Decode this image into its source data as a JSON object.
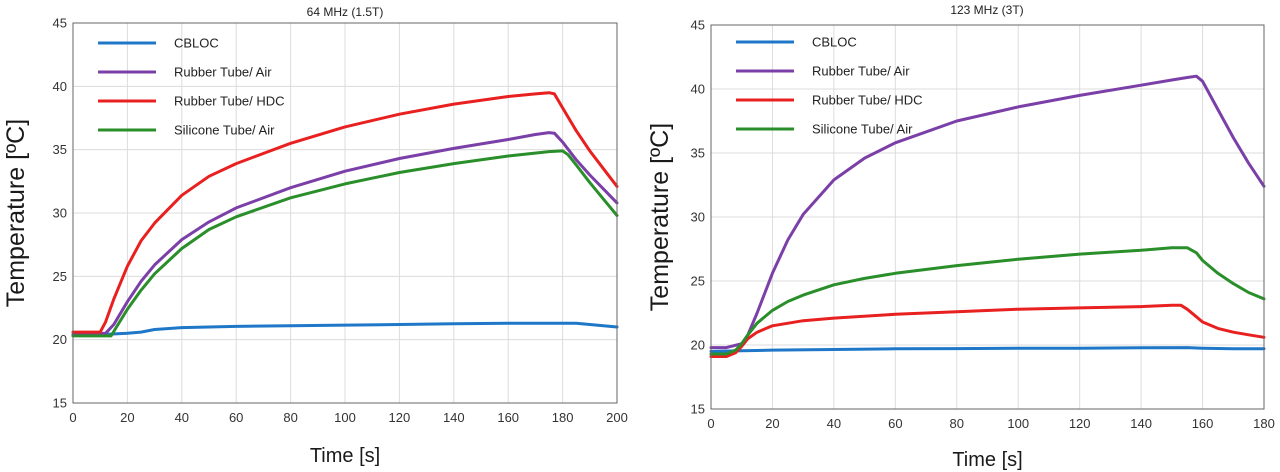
{
  "chart_data": [
    {
      "type": "line",
      "title": "64 MHz (1.5T)",
      "xlabel": "Time [s]",
      "ylabel": "Temperature [ºC]",
      "xlim": [
        0,
        200
      ],
      "ylim": [
        15,
        45
      ],
      "xticks": [
        0,
        20,
        40,
        60,
        80,
        100,
        120,
        140,
        160,
        180,
        200
      ],
      "yticks": [
        15,
        20,
        25,
        30,
        35,
        40,
        45
      ],
      "grid": true,
      "legend": "top-left",
      "series": [
        {
          "name": "CBLOC",
          "color": "#1f77c8",
          "x": [
            0,
            10,
            20,
            25,
            30,
            40,
            50,
            60,
            80,
            100,
            120,
            140,
            160,
            180,
            185,
            190,
            200
          ],
          "y": [
            20.4,
            20.4,
            20.5,
            20.6,
            20.8,
            20.95,
            21.0,
            21.05,
            21.1,
            21.15,
            21.2,
            21.25,
            21.3,
            21.3,
            21.3,
            21.2,
            21.0
          ]
        },
        {
          "name": "Rubber Tube/ Air",
          "color": "#7b3fa8",
          "x": [
            0,
            12,
            15,
            20,
            25,
            30,
            40,
            50,
            60,
            80,
            100,
            120,
            140,
            160,
            170,
            175,
            177,
            180,
            185,
            190,
            195,
            200
          ],
          "y": [
            20.4,
            20.5,
            21.2,
            23.0,
            24.6,
            25.9,
            27.9,
            29.3,
            30.4,
            32.0,
            33.3,
            34.3,
            35.1,
            35.8,
            36.2,
            36.35,
            36.3,
            35.6,
            34.2,
            33.0,
            31.9,
            30.8
          ]
        },
        {
          "name": "Rubber Tube/ HDC",
          "color": "#e8201f",
          "x": [
            0,
            10,
            12,
            15,
            20,
            25,
            30,
            40,
            50,
            60,
            80,
            100,
            120,
            140,
            160,
            170,
            175,
            177,
            180,
            185,
            190,
            195,
            200
          ],
          "y": [
            20.6,
            20.6,
            21.4,
            23.2,
            25.8,
            27.8,
            29.2,
            31.4,
            32.9,
            33.9,
            35.5,
            36.8,
            37.8,
            38.6,
            39.2,
            39.4,
            39.5,
            39.4,
            38.3,
            36.5,
            34.9,
            33.5,
            32.1
          ]
        },
        {
          "name": "Silicone Tube/ Air",
          "color": "#2a8f2a",
          "x": [
            0,
            14,
            16,
            20,
            25,
            30,
            40,
            50,
            60,
            80,
            100,
            120,
            140,
            160,
            175,
            180,
            182,
            185,
            190,
            195,
            200
          ],
          "y": [
            20.3,
            20.3,
            21.0,
            22.4,
            23.9,
            25.2,
            27.2,
            28.7,
            29.7,
            31.2,
            32.3,
            33.2,
            33.9,
            34.5,
            34.85,
            34.9,
            34.6,
            33.8,
            32.4,
            31.1,
            29.8
          ]
        }
      ]
    },
    {
      "type": "line",
      "title": "123 MHz (3T)",
      "xlabel": "Time [s]",
      "ylabel": "Temperature [ºC]",
      "xlim": [
        0,
        180
      ],
      "ylim": [
        15,
        45
      ],
      "xticks": [
        0,
        20,
        40,
        60,
        80,
        100,
        120,
        140,
        160,
        180
      ],
      "yticks": [
        15,
        20,
        25,
        30,
        35,
        40,
        45
      ],
      "grid": true,
      "legend": "top-left",
      "series": [
        {
          "name": "CBLOC",
          "color": "#1f77c8",
          "x": [
            0,
            10,
            20,
            40,
            60,
            80,
            100,
            120,
            140,
            155,
            160,
            170,
            180
          ],
          "y": [
            19.5,
            19.55,
            19.6,
            19.65,
            19.7,
            19.72,
            19.75,
            19.75,
            19.78,
            19.8,
            19.75,
            19.7,
            19.7
          ]
        },
        {
          "name": "Rubber Tube/ Air",
          "color": "#7b3fa8",
          "x": [
            0,
            5,
            10,
            12,
            15,
            20,
            25,
            30,
            40,
            50,
            60,
            80,
            100,
            120,
            140,
            150,
            155,
            158,
            160,
            165,
            170,
            175,
            180
          ],
          "y": [
            19.8,
            19.8,
            20.1,
            20.8,
            22.5,
            25.6,
            28.2,
            30.2,
            32.9,
            34.6,
            35.8,
            37.5,
            38.6,
            39.5,
            40.3,
            40.7,
            40.9,
            41.0,
            40.6,
            38.4,
            36.2,
            34.2,
            32.4
          ]
        },
        {
          "name": "Rubber Tube/ HDC",
          "color": "#e8201f",
          "x": [
            0,
            5,
            8,
            10,
            12,
            15,
            20,
            30,
            40,
            60,
            80,
            100,
            120,
            140,
            150,
            153,
            155,
            158,
            160,
            165,
            170,
            175,
            180
          ],
          "y": [
            19.1,
            19.1,
            19.4,
            19.9,
            20.5,
            21.0,
            21.5,
            21.9,
            22.1,
            22.4,
            22.6,
            22.8,
            22.9,
            23.0,
            23.1,
            23.1,
            22.8,
            22.2,
            21.8,
            21.3,
            21.0,
            20.8,
            20.6
          ]
        },
        {
          "name": "Silicone Tube/ Air",
          "color": "#2a8f2a",
          "x": [
            0,
            5,
            8,
            10,
            12,
            15,
            20,
            25,
            30,
            40,
            50,
            60,
            80,
            100,
            120,
            140,
            150,
            155,
            158,
            160,
            165,
            170,
            175,
            180
          ],
          "y": [
            19.3,
            19.3,
            19.6,
            20.1,
            20.8,
            21.7,
            22.7,
            23.4,
            23.9,
            24.7,
            25.2,
            25.6,
            26.2,
            26.7,
            27.1,
            27.4,
            27.6,
            27.6,
            27.2,
            26.6,
            25.6,
            24.8,
            24.1,
            23.6
          ]
        }
      ]
    }
  ]
}
